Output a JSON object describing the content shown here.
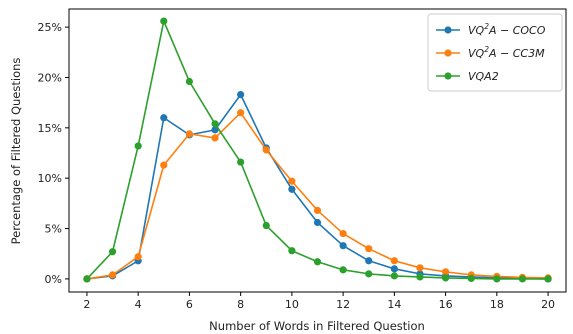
{
  "chart_data": {
    "type": "line",
    "xlabel": "Number of Words in Filtered Question",
    "ylabel": "Percentage of Filtered Questions",
    "xlim": [
      1.3,
      20.7
    ],
    "ylim": [
      -1.3,
      26.8
    ],
    "x_ticks": [
      2,
      4,
      6,
      8,
      10,
      12,
      14,
      16,
      18,
      20
    ],
    "y_ticks": [
      0,
      5,
      10,
      15,
      20,
      25
    ],
    "y_tick_labels": [
      "0%",
      "5%",
      "10%",
      "15%",
      "20%",
      "25%"
    ],
    "grid": false,
    "legend_position": "top-right",
    "x": [
      2,
      3,
      4,
      5,
      6,
      7,
      8,
      9,
      10,
      11,
      12,
      13,
      14,
      15,
      16,
      17,
      18,
      19,
      20
    ],
    "series": [
      {
        "name": "VQ2A-COCO",
        "legend": {
          "pre": "VQ",
          "sup": "2",
          "post": "A − COCO"
        },
        "color": "#1f77b4",
        "values": [
          0.0,
          0.3,
          1.8,
          16.0,
          14.3,
          14.8,
          18.3,
          13.0,
          8.9,
          5.6,
          3.3,
          1.8,
          1.0,
          0.5,
          0.3,
          0.2,
          0.1,
          0.05,
          0.0
        ]
      },
      {
        "name": "VQ2A-CC3M",
        "legend": {
          "pre": "VQ",
          "sup": "2",
          "post": "A − CC3M"
        },
        "color": "#ff7f0e",
        "values": [
          0.0,
          0.4,
          2.2,
          11.3,
          14.4,
          14.0,
          16.5,
          12.8,
          9.7,
          6.8,
          4.5,
          3.0,
          1.8,
          1.1,
          0.7,
          0.4,
          0.25,
          0.15,
          0.1
        ]
      },
      {
        "name": "VQA2",
        "legend": {
          "pre": "VQA2",
          "sup": "",
          "post": ""
        },
        "color": "#2ca02c",
        "values": [
          0.0,
          2.7,
          13.2,
          25.6,
          19.6,
          15.4,
          11.6,
          5.3,
          2.8,
          1.7,
          0.9,
          0.5,
          0.3,
          0.2,
          0.1,
          0.05,
          0.0,
          0.0,
          0.0
        ]
      }
    ]
  }
}
